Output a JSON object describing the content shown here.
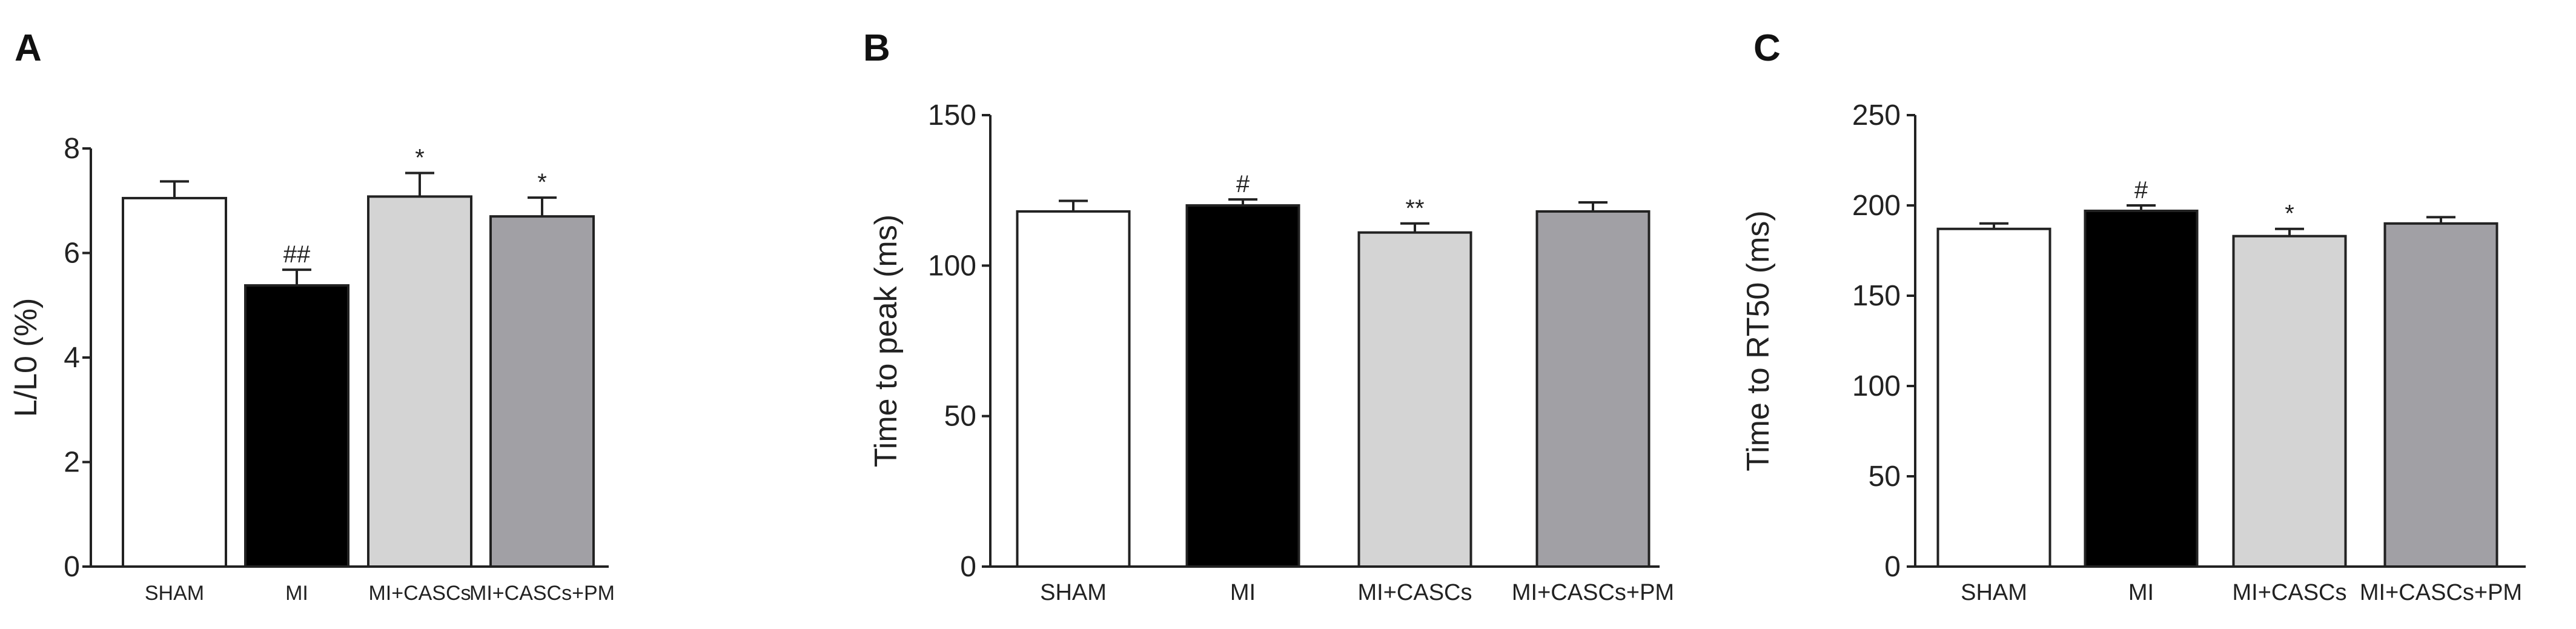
{
  "chart_data": [
    {
      "panel": "A",
      "type": "bar",
      "ylabel": "L/L0 (%)",
      "categories": [
        "SHAM",
        "MI",
        "MI+CASCs",
        "MI+CASCs+PM"
      ],
      "values": [
        7.05,
        5.38,
        7.08,
        6.7
      ],
      "errors": [
        0.32,
        0.3,
        0.45,
        0.36
      ],
      "annotations": [
        "",
        "##",
        "*",
        "*"
      ],
      "colors": [
        "#ffffff",
        "#000000",
        "#d4d4d4",
        "#a1a0a5"
      ],
      "ylim": [
        0,
        8
      ],
      "yticks": [
        0,
        2,
        4,
        6,
        8
      ]
    },
    {
      "panel": "B",
      "type": "bar",
      "ylabel": "Time to peak (ms)",
      "categories": [
        "SHAM",
        "MI",
        "MI+CASCs",
        "MI+CASCs+PM"
      ],
      "values": [
        118,
        120,
        111,
        118
      ],
      "errors": [
        3.5,
        2.0,
        3.0,
        3.0
      ],
      "annotations": [
        "",
        "#",
        "**",
        ""
      ],
      "colors": [
        "#ffffff",
        "#000000",
        "#d4d4d4",
        "#a1a0a5"
      ],
      "ylim": [
        0,
        150
      ],
      "yticks": [
        0,
        50,
        100,
        150
      ]
    },
    {
      "panel": "C",
      "type": "bar",
      "ylabel": "Time to RT50 (ms)",
      "categories": [
        "SHAM",
        "MI",
        "MI+CASCs",
        "MI+CASCs+PM"
      ],
      "values": [
        187,
        197,
        183,
        190
      ],
      "errors": [
        3,
        3,
        4,
        3.5
      ],
      "annotations": [
        "",
        "#",
        "*",
        ""
      ],
      "colors": [
        "#ffffff",
        "#000000",
        "#d4d4d4",
        "#a1a0a5"
      ],
      "ylim": [
        0,
        250
      ],
      "yticks": [
        0,
        50,
        100,
        150,
        200,
        250
      ]
    }
  ]
}
